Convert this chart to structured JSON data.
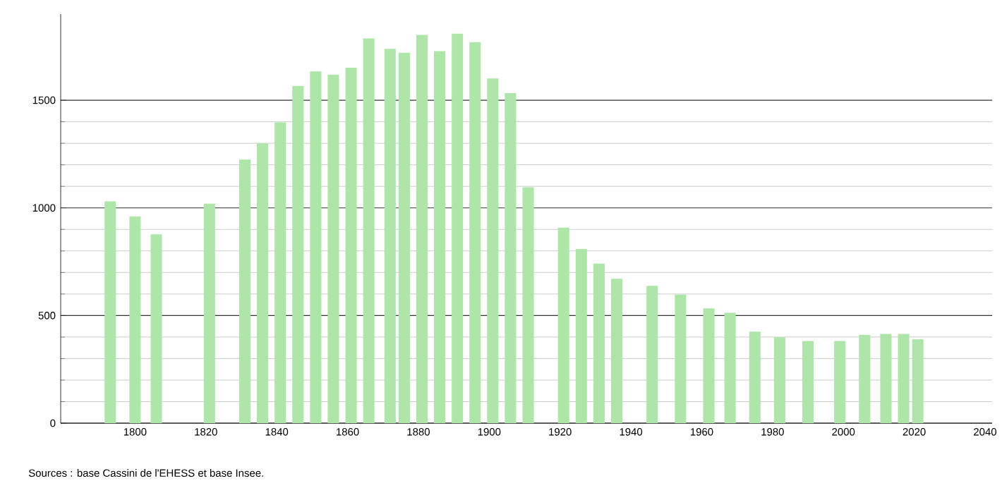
{
  "chart_data": {
    "type": "bar",
    "color": "#ade6a8",
    "x": [
      1793,
      1800,
      1806,
      1821,
      1831,
      1836,
      1841,
      1846,
      1851,
      1856,
      1861,
      1866,
      1872,
      1876,
      1881,
      1886,
      1891,
      1896,
      1901,
      1906,
      1911,
      1921,
      1926,
      1931,
      1936,
      1946,
      1954,
      1962,
      1968,
      1975,
      1982,
      1990,
      1999,
      2006,
      2012,
      2017,
      2021
    ],
    "values": [
      1030,
      960,
      877,
      1020,
      1224,
      1300,
      1397,
      1566,
      1634,
      1618,
      1651,
      1787,
      1739,
      1721,
      1803,
      1728,
      1809,
      1770,
      1601,
      1533,
      1096,
      908,
      809,
      741,
      671,
      638,
      597,
      533,
      513,
      425,
      399,
      382,
      382,
      410,
      414,
      414,
      390
    ],
    "xlim": [
      1779,
      2042
    ],
    "ylim": [
      0,
      1900
    ],
    "xticks": [
      1800,
      1820,
      1840,
      1860,
      1880,
      1900,
      1920,
      1940,
      1960,
      1980,
      2000,
      2020,
      2040
    ],
    "yticks": [
      0,
      500,
      1000,
      1500
    ],
    "grid": "y",
    "annotations": [
      "Sources : base Cassini de l'EHESS et base Insee."
    ]
  }
}
